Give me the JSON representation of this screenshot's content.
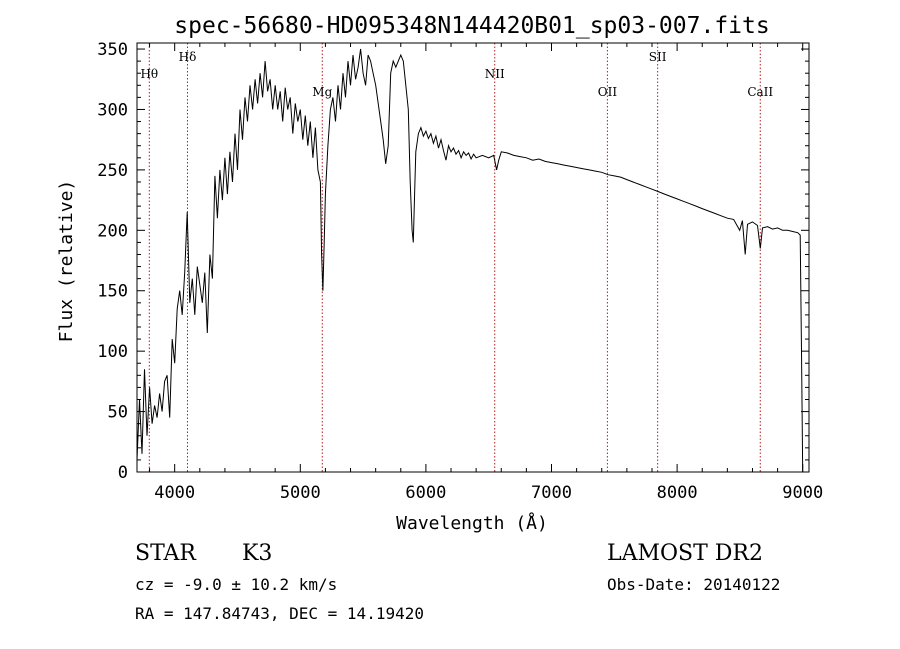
{
  "chart_data": {
    "type": "line",
    "title": "spec-56680-HD095348N144420B01_sp03-007.fits",
    "xlabel": "Wavelength (Å)",
    "ylabel": "Flux (relative)",
    "xlim": [
      3700,
      9050
    ],
    "ylim": [
      0,
      355
    ],
    "xticks": [
      4000,
      5000,
      6000,
      7000,
      8000,
      9000
    ],
    "yticks": [
      0,
      50,
      100,
      150,
      200,
      250,
      300,
      350
    ],
    "grid": false,
    "series": [
      {
        "points": [
          [
            3700,
            10
          ],
          [
            3720,
            60
          ],
          [
            3740,
            15
          ],
          [
            3760,
            85
          ],
          [
            3780,
            30
          ],
          [
            3800,
            70
          ],
          [
            3820,
            40
          ],
          [
            3840,
            55
          ],
          [
            3860,
            45
          ],
          [
            3880,
            65
          ],
          [
            3900,
            50
          ],
          [
            3920,
            75
          ],
          [
            3940,
            80
          ],
          [
            3960,
            45
          ],
          [
            3980,
            110
          ],
          [
            4000,
            90
          ],
          [
            4020,
            135
          ],
          [
            4040,
            150
          ],
          [
            4060,
            130
          ],
          [
            4080,
            165
          ],
          [
            4100,
            215
          ],
          [
            4120,
            140
          ],
          [
            4140,
            160
          ],
          [
            4160,
            130
          ],
          [
            4180,
            170
          ],
          [
            4200,
            155
          ],
          [
            4220,
            140
          ],
          [
            4240,
            165
          ],
          [
            4260,
            115
          ],
          [
            4280,
            180
          ],
          [
            4300,
            160
          ],
          [
            4320,
            245
          ],
          [
            4340,
            210
          ],
          [
            4360,
            250
          ],
          [
            4380,
            225
          ],
          [
            4400,
            260
          ],
          [
            4420,
            230
          ],
          [
            4440,
            265
          ],
          [
            4460,
            240
          ],
          [
            4480,
            280
          ],
          [
            4500,
            250
          ],
          [
            4520,
            300
          ],
          [
            4540,
            275
          ],
          [
            4560,
            310
          ],
          [
            4580,
            290
          ],
          [
            4600,
            320
          ],
          [
            4620,
            300
          ],
          [
            4640,
            325
          ],
          [
            4660,
            305
          ],
          [
            4680,
            330
          ],
          [
            4700,
            310
          ],
          [
            4720,
            340
          ],
          [
            4740,
            315
          ],
          [
            4760,
            325
          ],
          [
            4780,
            300
          ],
          [
            4800,
            320
          ],
          [
            4820,
            300
          ],
          [
            4840,
            315
          ],
          [
            4860,
            290
          ],
          [
            4880,
            318
          ],
          [
            4900,
            300
          ],
          [
            4920,
            310
          ],
          [
            4940,
            280
          ],
          [
            4960,
            305
          ],
          [
            4980,
            290
          ],
          [
            5000,
            300
          ],
          [
            5020,
            275
          ],
          [
            5040,
            295
          ],
          [
            5060,
            270
          ],
          [
            5080,
            290
          ],
          [
            5100,
            260
          ],
          [
            5120,
            285
          ],
          [
            5140,
            250
          ],
          [
            5160,
            240
          ],
          [
            5170,
            180
          ],
          [
            5180,
            150
          ],
          [
            5190,
            190
          ],
          [
            5200,
            230
          ],
          [
            5220,
            270
          ],
          [
            5240,
            300
          ],
          [
            5260,
            310
          ],
          [
            5280,
            290
          ],
          [
            5300,
            320
          ],
          [
            5320,
            300
          ],
          [
            5340,
            330
          ],
          [
            5360,
            310
          ],
          [
            5380,
            340
          ],
          [
            5400,
            320
          ],
          [
            5420,
            345
          ],
          [
            5440,
            325
          ],
          [
            5460,
            335
          ],
          [
            5480,
            350
          ],
          [
            5500,
            330
          ],
          [
            5520,
            320
          ],
          [
            5540,
            345
          ],
          [
            5560,
            340
          ],
          [
            5580,
            330
          ],
          [
            5600,
            320
          ],
          [
            5620,
            305
          ],
          [
            5640,
            290
          ],
          [
            5660,
            275
          ],
          [
            5680,
            255
          ],
          [
            5700,
            270
          ],
          [
            5720,
            330
          ],
          [
            5740,
            340
          ],
          [
            5760,
            335
          ],
          [
            5780,
            340
          ],
          [
            5800,
            345
          ],
          [
            5820,
            340
          ],
          [
            5840,
            320
          ],
          [
            5860,
            300
          ],
          [
            5875,
            240
          ],
          [
            5890,
            200
          ],
          [
            5900,
            190
          ],
          [
            5910,
            230
          ],
          [
            5920,
            265
          ],
          [
            5940,
            280
          ],
          [
            5960,
            285
          ],
          [
            5980,
            278
          ],
          [
            6000,
            282
          ],
          [
            6020,
            276
          ],
          [
            6040,
            280
          ],
          [
            6060,
            272
          ],
          [
            6080,
            278
          ],
          [
            6100,
            268
          ],
          [
            6120,
            275
          ],
          [
            6140,
            266
          ],
          [
            6160,
            258
          ],
          [
            6180,
            270
          ],
          [
            6200,
            265
          ],
          [
            6220,
            268
          ],
          [
            6240,
            263
          ],
          [
            6260,
            266
          ],
          [
            6280,
            260
          ],
          [
            6300,
            265
          ],
          [
            6320,
            262
          ],
          [
            6340,
            264
          ],
          [
            6360,
            259
          ],
          [
            6380,
            263
          ],
          [
            6400,
            260
          ],
          [
            6450,
            262
          ],
          [
            6500,
            260
          ],
          [
            6540,
            262
          ],
          [
            6563,
            250
          ],
          [
            6580,
            258
          ],
          [
            6600,
            265
          ],
          [
            6650,
            264
          ],
          [
            6700,
            262
          ],
          [
            6750,
            261
          ],
          [
            6800,
            260
          ],
          [
            6850,
            258
          ],
          [
            6900,
            259
          ],
          [
            6950,
            257
          ],
          [
            7000,
            256
          ],
          [
            7050,
            255
          ],
          [
            7100,
            254
          ],
          [
            7150,
            253
          ],
          [
            7200,
            252
          ],
          [
            7250,
            251
          ],
          [
            7300,
            250
          ],
          [
            7350,
            249
          ],
          [
            7400,
            248
          ],
          [
            7450,
            246
          ],
          [
            7500,
            245
          ],
          [
            7550,
            244
          ],
          [
            7600,
            242
          ],
          [
            7650,
            240
          ],
          [
            7700,
            238
          ],
          [
            7750,
            236
          ],
          [
            7800,
            234
          ],
          [
            7850,
            232
          ],
          [
            7900,
            230
          ],
          [
            7950,
            228
          ],
          [
            8000,
            226
          ],
          [
            8050,
            224
          ],
          [
            8100,
            222
          ],
          [
            8150,
            220
          ],
          [
            8200,
            218
          ],
          [
            8250,
            216
          ],
          [
            8300,
            214
          ],
          [
            8350,
            212
          ],
          [
            8400,
            210
          ],
          [
            8450,
            209
          ],
          [
            8498,
            200
          ],
          [
            8520,
            208
          ],
          [
            8542,
            180
          ],
          [
            8560,
            205
          ],
          [
            8600,
            207
          ],
          [
            8640,
            204
          ],
          [
            8662,
            185
          ],
          [
            8680,
            202
          ],
          [
            8720,
            203
          ],
          [
            8760,
            201
          ],
          [
            8800,
            202
          ],
          [
            8840,
            200
          ],
          [
            8880,
            200
          ],
          [
            8920,
            199
          ],
          [
            8960,
            198
          ],
          [
            8980,
            196
          ],
          [
            8990,
            100
          ],
          [
            9000,
            0
          ]
        ]
      }
    ],
    "line_markers": [
      {
        "label": "Hθ",
        "wavelength": 3798
      },
      {
        "label": "Hδ",
        "wavelength": 4102
      },
      {
        "label": "Mg",
        "wavelength": 5175
      },
      {
        "label": "NII",
        "wavelength": 6548
      },
      {
        "label": "OII",
        "wavelength": 7445
      },
      {
        "label": "SII",
        "wavelength": 7845
      },
      {
        "label": "CaII",
        "wavelength": 8662
      }
    ],
    "colors": {
      "spectrum": "#000000",
      "marker": "#b22222",
      "axes": "#000000"
    }
  },
  "info": {
    "class_label": "STAR",
    "subclass": "K3",
    "survey": "LAMOST DR2",
    "velocity": "cz = -9.0 ± 10.2 km/s",
    "obs_date": "Obs-Date: 20140122",
    "coords": "RA = 147.84743, DEC =  14.19420"
  }
}
